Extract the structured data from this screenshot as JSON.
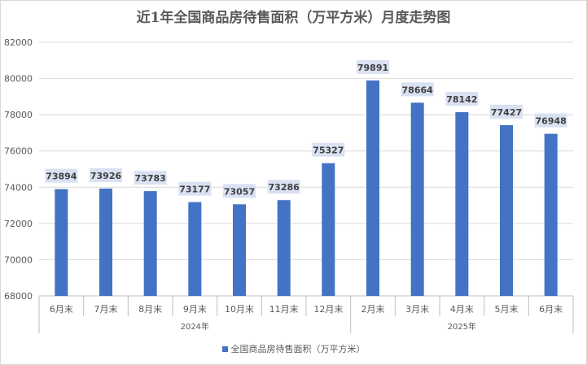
{
  "chart_data": {
    "type": "bar",
    "title": "近1年全国商品房待售面积（万平方米）月度走势图",
    "categories": [
      "6月末",
      "7月末",
      "8月末",
      "9月末",
      "10月末",
      "11月末",
      "12月末",
      "2月末",
      "3月末",
      "4月末",
      "5月末",
      "6月末"
    ],
    "groups": [
      {
        "label": "2024年",
        "count": 7
      },
      {
        "label": "2025年",
        "count": 5
      }
    ],
    "series": [
      {
        "name": "全国商品房待售面积（万平方米）",
        "color": "#4472c4",
        "values": [
          73894,
          73926,
          73783,
          73177,
          73057,
          73286,
          75327,
          79891,
          78664,
          78142,
          77427,
          76948
        ]
      }
    ],
    "ylim": [
      68000,
      82000
    ],
    "yticks": [
      68000,
      70000,
      72000,
      74000,
      76000,
      78000,
      80000,
      82000
    ],
    "grid": true,
    "legend_position": "bottom",
    "data_label_background": "#d9e1f2"
  }
}
